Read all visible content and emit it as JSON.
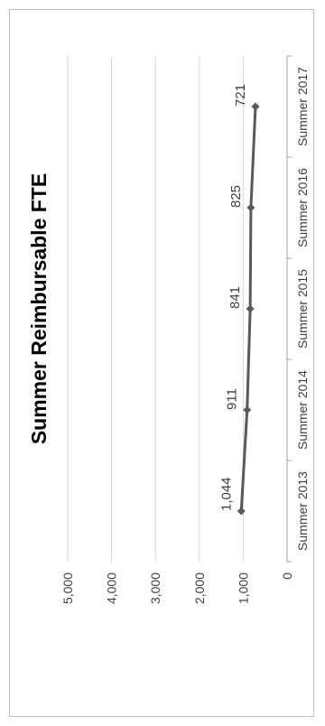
{
  "chart_data": {
    "type": "line",
    "title": "Summer Reimbursable FTE",
    "categories": [
      "Summer 2013",
      "Summer 2014",
      "Summer 2015",
      "Summer 2016",
      "Summer 2017"
    ],
    "values": [
      1044,
      911,
      841,
      825,
      721
    ],
    "value_labels": [
      "1,044",
      "911",
      "841",
      "825",
      "721"
    ],
    "ylim": [
      0,
      5000
    ],
    "y_ticks": [
      0,
      1000,
      2000,
      3000,
      4000,
      5000
    ],
    "y_tick_labels": [
      "0",
      "1,000",
      "2,000",
      "3,000",
      "4,000",
      "5,000"
    ],
    "grid": true,
    "legend": "none",
    "orientation": "rotated 90 degrees counter-clockwise",
    "colors": {
      "line": "#595959",
      "grid": "#d9d9d9",
      "axis": "#a6a6a6",
      "text": "#404040"
    }
  }
}
